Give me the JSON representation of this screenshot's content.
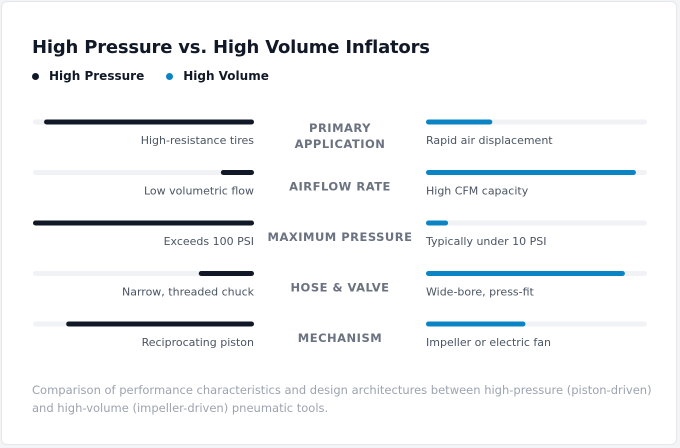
{
  "title": "High Pressure vs. High Volume Inflators",
  "legend": [
    {
      "label": "High Pressure",
      "color": "#111827"
    },
    {
      "label": "High Volume",
      "color": "#0b84c6"
    }
  ],
  "chart_data": {
    "type": "bar",
    "title": "High Pressure vs. High Volume Inflators",
    "categories": [
      [
        "PRIMARY",
        "APPLICATION"
      ],
      [
        "AIRFLOW RATE"
      ],
      [
        "MAXIMUM PRESSURE"
      ],
      [
        "HOSE & VALVE"
      ],
      [
        "MECHANISM"
      ]
    ],
    "series": [
      {
        "name": "High Pressure",
        "color": "#111827",
        "values": [
          95,
          15,
          100,
          25,
          85
        ],
        "annotations": [
          "High-resistance tires",
          "Low volumetric flow",
          "Exceeds 100 PSI",
          "Narrow, threaded chuck",
          "Reciprocating piston"
        ]
      },
      {
        "name": "High Volume",
        "color": "#0b84c6",
        "values": [
          30,
          95,
          10,
          90,
          45
        ],
        "annotations": [
          "Rapid air displacement",
          "High CFM capacity",
          "Typically under 10 PSI",
          "Wide-bore, press-fit",
          "Impeller or electric fan"
        ]
      }
    ],
    "ylim": [
      0,
      100
    ],
    "track_color": "#f0f2f5",
    "legend_position": "top-left"
  },
  "footnote": "Comparison of performance characteristics and design architectures between high-pressure (piston-driven) and high-volume (impeller-driven) pneumatic tools."
}
